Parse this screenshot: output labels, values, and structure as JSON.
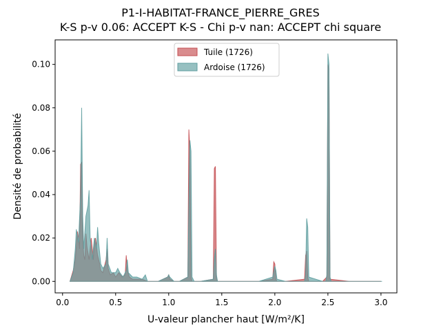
{
  "chart_data": {
    "type": "area",
    "title": "P1-I-HABITAT-FRANCE_PIERRE_GRES",
    "subtitle": "K-S p-v 0.06: ACCEPT K-S - Chi p-v nan: ACCEPT chi square",
    "xlabel": "U-valeur plancher haut [W/m²/K]",
    "ylabel": "Densité de probabilité",
    "xlim": [
      -0.07,
      3.15
    ],
    "ylim": [
      -0.0053,
      0.1113
    ],
    "xticks": [
      0.0,
      0.5,
      1.0,
      1.5,
      2.0,
      2.5,
      3.0
    ],
    "xtick_labels": [
      "0.0",
      "0.5",
      "1.0",
      "1.5",
      "2.0",
      "2.5",
      "3.0"
    ],
    "yticks": [
      0.0,
      0.02,
      0.04,
      0.06,
      0.08,
      0.1
    ],
    "ytick_labels": [
      "0.00",
      "0.02",
      "0.04",
      "0.06",
      "0.08",
      "0.10"
    ],
    "grid": false,
    "legend_position": "top-center",
    "series": [
      {
        "name": "Tuile (1726)",
        "color": "#c44e52",
        "alpha": 0.65,
        "x": [
          0.07,
          0.1,
          0.12,
          0.14,
          0.15,
          0.16,
          0.17,
          0.18,
          0.19,
          0.2,
          0.21,
          0.22,
          0.23,
          0.25,
          0.27,
          0.29,
          0.3,
          0.31,
          0.33,
          0.35,
          0.36,
          0.38,
          0.41,
          0.42,
          0.43,
          0.45,
          0.48,
          0.5,
          0.53,
          0.56,
          0.59,
          0.6,
          0.61,
          0.63,
          0.66,
          0.7,
          0.75,
          0.8,
          0.9,
          0.99,
          1.0,
          1.01,
          1.05,
          1.1,
          1.18,
          1.19,
          1.2,
          1.21,
          1.22,
          1.3,
          1.42,
          1.43,
          1.44,
          1.45,
          1.46,
          1.55,
          1.7,
          1.85,
          1.98,
          1.99,
          2.0,
          2.01,
          2.02,
          2.1,
          2.28,
          2.29,
          2.3,
          2.31,
          2.32,
          2.45,
          2.49,
          2.5,
          2.51,
          2.52,
          2.7,
          2.9,
          3.0
        ],
        "y": [
          0.0,
          0.005,
          0.01,
          0.023,
          0.02,
          0.015,
          0.054,
          0.055,
          0.02,
          0.012,
          0.01,
          0.022,
          0.016,
          0.01,
          0.02,
          0.01,
          0.018,
          0.02,
          0.012,
          0.008,
          0.005,
          0.004,
          0.01,
          0.015,
          0.006,
          0.003,
          0.004,
          0.002,
          0.004,
          0.002,
          0.003,
          0.012,
          0.005,
          0.002,
          0.001,
          0.001,
          0.001,
          0.0,
          0.0,
          0.002,
          0.003,
          0.001,
          0.0,
          0.0,
          0.002,
          0.07,
          0.06,
          0.002,
          0.0,
          0.0,
          0.001,
          0.052,
          0.053,
          0.002,
          0.0,
          0.0,
          0.0,
          0.0,
          0.001,
          0.009,
          0.008,
          0.001,
          0.0,
          0.0,
          0.001,
          0.012,
          0.014,
          0.002,
          0.0,
          0.0,
          0.002,
          0.1,
          0.098,
          0.001,
          0.0,
          0.0,
          0.0
        ]
      },
      {
        "name": "Ardoise (1726)",
        "color": "#5f9ea0",
        "alpha": 0.65,
        "x": [
          0.07,
          0.1,
          0.12,
          0.13,
          0.15,
          0.17,
          0.18,
          0.19,
          0.2,
          0.22,
          0.24,
          0.25,
          0.26,
          0.28,
          0.3,
          0.32,
          0.33,
          0.34,
          0.36,
          0.38,
          0.41,
          0.42,
          0.43,
          0.46,
          0.5,
          0.52,
          0.54,
          0.57,
          0.6,
          0.61,
          0.62,
          0.66,
          0.7,
          0.75,
          0.78,
          0.8,
          0.85,
          0.9,
          0.99,
          1.0,
          1.01,
          1.05,
          1.1,
          1.18,
          1.2,
          1.21,
          1.22,
          1.24,
          1.3,
          1.42,
          1.43,
          1.44,
          1.45,
          1.46,
          1.55,
          1.7,
          1.85,
          1.98,
          2.0,
          2.01,
          2.02,
          2.1,
          2.28,
          2.29,
          2.3,
          2.31,
          2.32,
          2.45,
          2.48,
          2.49,
          2.5,
          2.51,
          2.52,
          2.53,
          2.7,
          2.9,
          3.01
        ],
        "y": [
          0.0,
          0.004,
          0.015,
          0.024,
          0.018,
          0.04,
          0.08,
          0.03,
          0.015,
          0.03,
          0.035,
          0.042,
          0.02,
          0.01,
          0.02,
          0.015,
          0.025,
          0.018,
          0.008,
          0.006,
          0.008,
          0.02,
          0.008,
          0.004,
          0.004,
          0.006,
          0.004,
          0.002,
          0.005,
          0.01,
          0.004,
          0.002,
          0.002,
          0.001,
          0.003,
          0.0,
          0.0,
          0.0,
          0.002,
          0.003,
          0.002,
          0.0,
          0.0,
          0.002,
          0.065,
          0.06,
          0.002,
          0.0,
          0.0,
          0.001,
          0.01,
          0.015,
          0.003,
          0.0,
          0.0,
          0.0,
          0.0,
          0.002,
          0.007,
          0.005,
          0.001,
          0.0,
          0.0,
          0.003,
          0.029,
          0.025,
          0.002,
          0.0,
          0.0,
          0.003,
          0.105,
          0.1,
          0.002,
          0.0,
          0.0,
          0.0,
          0.0
        ]
      }
    ]
  }
}
